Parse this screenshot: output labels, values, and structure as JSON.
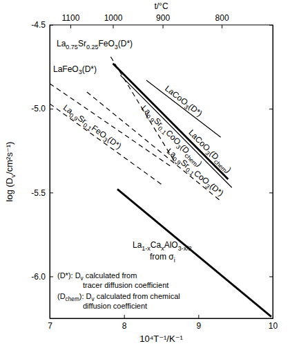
{
  "chart_data": {
    "type": "line",
    "color": "#000000",
    "xlabel": "10⁴T⁻¹/K⁻¹",
    "ylabel": "log (Dv/cm²s⁻¹)",
    "x2label": "t/°C",
    "xlim": [
      7,
      10
    ],
    "xticks": [
      7,
      8,
      9,
      10
    ],
    "ylim": [
      -6.25,
      -4.5
    ],
    "yticks": [
      {
        "value": -6,
        "label": "-6.0"
      },
      -5.5,
      {
        "value": -5,
        "label": "-5.0"
      },
      -4.5
    ],
    "x2ticks": [
      1100,
      1000,
      900,
      800
    ],
    "series": [
      {
        "name": "La0.75Sr0.25FeO3(D*)",
        "line_style": "dashed",
        "x": [
          7.82,
          8.7
        ],
        "values": [
          -4.69,
          -5.33
        ]
      },
      {
        "name": "LaFeO3(D*)",
        "line_style": "dashed",
        "x": [
          7.0,
          8.65
        ],
        "values": [
          -4.85,
          -5.35
        ]
      },
      {
        "name": "La0.9Sr0.1FeO3(D*)",
        "line_style": "dashed",
        "x": [
          7.0,
          8.5
        ],
        "values": [
          -4.97,
          -5.45
        ]
      },
      {
        "name": "LaCoO3(D*)",
        "line_style": "solid",
        "x": [
          8.3,
          9.3
        ],
        "values": [
          -4.83,
          -5.17
        ]
      },
      {
        "name": "La0.9Sr0.1CoO3(D*)",
        "line_style": "dashed",
        "x": [
          7.5,
          9.3
        ],
        "values": [
          -4.9,
          -5.55
        ]
      },
      {
        "name": "LaCoO3(Dchem)",
        "line_style": "thick",
        "x": [
          7.85,
          9.4
        ],
        "values": [
          -4.73,
          -5.42
        ]
      },
      {
        "name": "La0.9Sr0.1CoO3(Dchem)",
        "line_style": "solid",
        "x": [
          7.95,
          9.45
        ],
        "values": [
          -4.8,
          -5.47
        ]
      },
      {
        "name": "La1-xCaxAlO3-x/2",
        "line_style": "thick",
        "x": [
          7.91,
          9.98
        ],
        "values": [
          -5.48,
          -6.24
        ]
      }
    ],
    "annotations": [
      "from σi"
    ],
    "notes": [
      [
        "(D*): Dv calculated from",
        "tracer diffusion coefficient"
      ],
      [
        "(Dchem): Dv calculated from chemical",
        "diffusion coefficient"
      ]
    ]
  }
}
